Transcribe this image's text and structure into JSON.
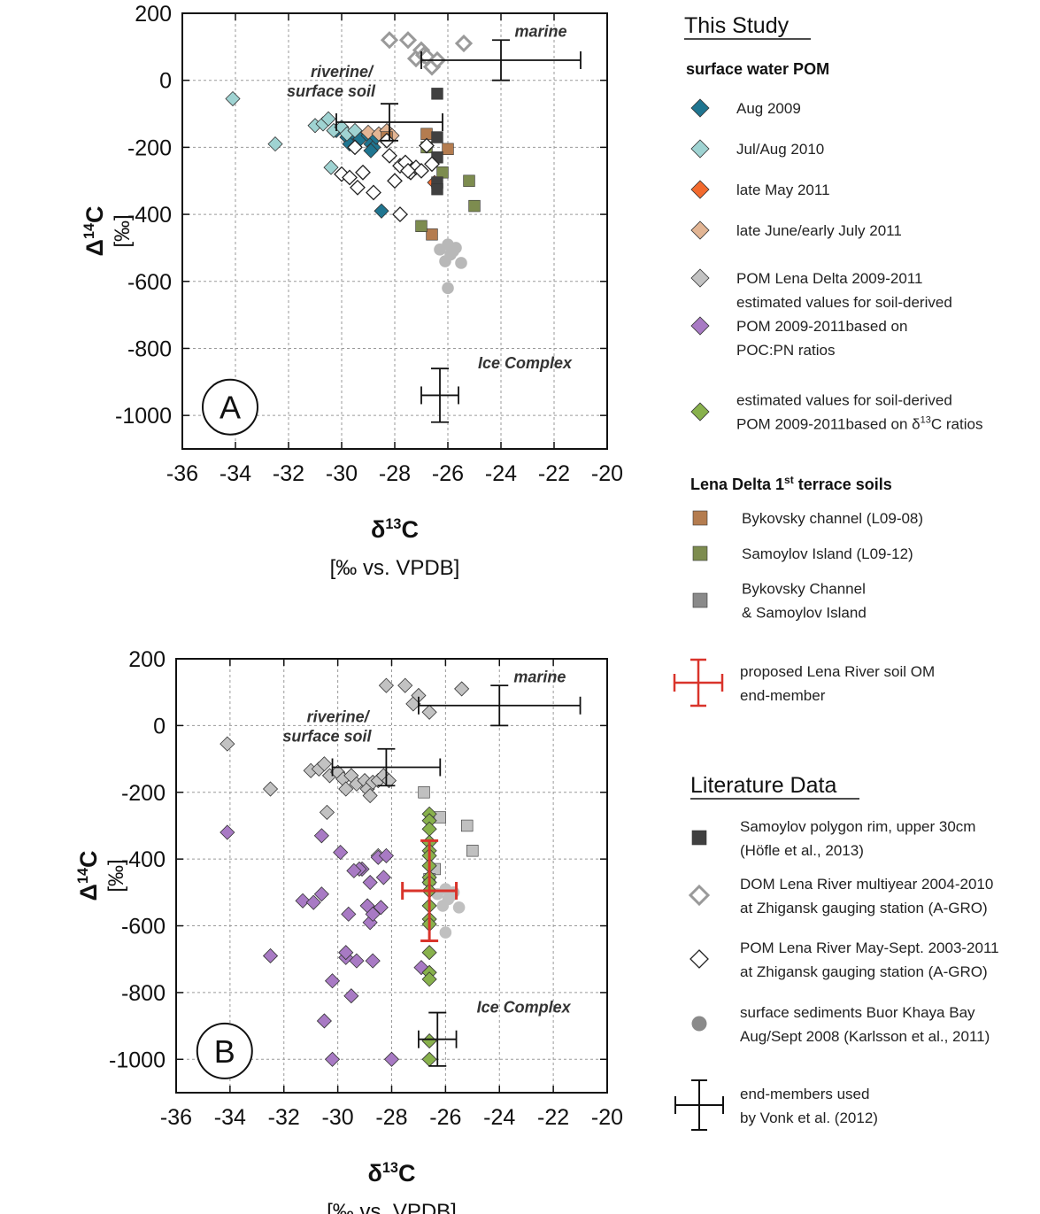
{
  "chart_data": [
    {
      "type": "scatter",
      "panel_label": "A",
      "xlabel": "δ13C",
      "xlabel_units": "[‰ vs. VPDB]",
      "ylabel": "Δ14C",
      "ylabel_units": "[‰]",
      "xlim": [
        -36,
        -20
      ],
      "ylim": [
        -1100,
        200
      ],
      "xticks": [
        "-36",
        "-34",
        "-32",
        "-30",
        "-28",
        "-26",
        "-24",
        "-22",
        "-20"
      ],
      "yticks": [
        "200",
        "0",
        "-200",
        "-400",
        "-600",
        "-800",
        "-1000"
      ],
      "grid": true,
      "annotations": [
        "marine",
        "riverine/",
        "surface soil",
        "Ice Complex"
      ],
      "end_members": [
        {
          "name": "marine",
          "x": -24,
          "y": 60,
          "xmin": -27,
          "xmax": -21,
          "ymin": 0,
          "ymax": 120
        },
        {
          "name": "riverine/surface soil",
          "x": -28.2,
          "y": -125,
          "xmin": -30.2,
          "xmax": -26.2,
          "ymin": -180,
          "ymax": -70
        },
        {
          "name": "Ice Complex",
          "x": -26.3,
          "y": -940,
          "xmin": -27,
          "xmax": -25.6,
          "ymin": -1020,
          "ymax": -860
        }
      ],
      "series": [
        {
          "name": "Aug 2009",
          "marker": "diamond",
          "color": "#1f7590",
          "x": [
            -30.2,
            -29.8,
            -29.6,
            -29.5,
            -29.3,
            -29.0,
            -28.9,
            -28.8,
            -28.7,
            -28.5,
            -28.9,
            -29.7,
            -28.5
          ],
          "y": [
            -150,
            -170,
            -160,
            -190,
            -175,
            -165,
            -190,
            -200,
            -170,
            -165,
            -210,
            -190,
            -390
          ]
        },
        {
          "name": "Jul/Aug 2010",
          "marker": "diamond",
          "color": "#9fd3d2",
          "x": [
            -34.1,
            -32.5,
            -31.0,
            -30.7,
            -30.5,
            -30.3,
            -30.0,
            -29.8,
            -29.5,
            -30.4
          ],
          "y": [
            -55,
            -190,
            -135,
            -130,
            -115,
            -150,
            -140,
            -160,
            -150,
            -260
          ]
        },
        {
          "name": "late May 2011",
          "marker": "diamond",
          "color": "#f26a2e",
          "x": [
            -26.5
          ],
          "y": [
            -305
          ]
        },
        {
          "name": "late June/early July 2011",
          "marker": "diamond",
          "color": "#e2b594",
          "x": [
            -29.0,
            -28.6,
            -28.3,
            -28.1
          ],
          "y": [
            -155,
            -160,
            -150,
            -165
          ]
        },
        {
          "name": "POM Lena Delta 2009-2011",
          "marker": "diamond",
          "color": "#c2c2c2",
          "x": [],
          "y": []
        },
        {
          "name": "Bykovsky channel (L09-08)",
          "marker": "square",
          "color": "#b47c4f",
          "x": [
            -26.8,
            -26.0,
            -26.6,
            -28.3
          ],
          "y": [
            -160,
            -205,
            -460,
            -170
          ]
        },
        {
          "name": "Samoylov Island (L09-12)",
          "marker": "square",
          "color": "#7d8c4f",
          "x": [
            -26.8,
            -26.2,
            -25.2,
            -25.0,
            -27.0
          ],
          "y": [
            -200,
            -275,
            -300,
            -375,
            -435
          ]
        },
        {
          "name": "Samoylov polygon rim, upper 30cm",
          "marker": "square",
          "color": "#404040",
          "x": [
            -26.4,
            -26.4,
            -26.4,
            -26.4,
            -26.4
          ],
          "y": [
            -40,
            -170,
            -230,
            -305,
            -325
          ]
        },
        {
          "name": "DOM Lena River multiyear 2004-2010",
          "marker": "diamond-open-thick",
          "color": "#9a9a9a",
          "x": [
            -28.2,
            -27.5,
            -27.2,
            -27.0,
            -26.9,
            -26.6,
            -25.4,
            -26.8,
            -26.4
          ],
          "y": [
            120,
            120,
            65,
            90,
            75,
            40,
            110,
            70,
            60
          ]
        },
        {
          "name": "POM Lena River May-Sept. 2003-2011",
          "marker": "diamond-open",
          "color": "#222222",
          "x": [
            -30.0,
            -29.7,
            -29.4,
            -29.2,
            -28.8,
            -28.2,
            -28.0,
            -27.8,
            -27.6,
            -27.4,
            -27.2,
            -27.0,
            -26.8,
            -26.6,
            -27.8,
            -27.5,
            -28.3,
            -29.5
          ],
          "y": [
            -280,
            -290,
            -320,
            -275,
            -335,
            -225,
            -300,
            -255,
            -245,
            -275,
            -260,
            -270,
            -195,
            -250,
            -400,
            -270,
            -180,
            -200
          ]
        },
        {
          "name": "surface sediments Buor Khaya Bay Aug/Sept 2008",
          "marker": "circle",
          "color": "#b8b8b8",
          "x": [
            -26.3,
            -26.0,
            -25.8,
            -26.1,
            -25.7,
            -25.5,
            -25.9,
            -26.0
          ],
          "y": [
            -505,
            -490,
            -510,
            -540,
            -500,
            -545,
            -520,
            -620
          ]
        }
      ]
    },
    {
      "type": "scatter",
      "panel_label": "B",
      "xlabel": "δ13C",
      "xlabel_units": "[‰ vs. VPDB]",
      "ylabel": "Δ14C",
      "ylabel_units": "[‰]",
      "xlim": [
        -36,
        -20
      ],
      "ylim": [
        -1100,
        200
      ],
      "xticks": [
        "-36",
        "-34",
        "-32",
        "-30",
        "-28",
        "-26",
        "-24",
        "-22",
        "-20"
      ],
      "yticks": [
        "200",
        "0",
        "-200",
        "-400",
        "-600",
        "-800",
        "-1000"
      ],
      "grid": true,
      "annotations": [
        "marine",
        "riverine/",
        "surface soil",
        "Ice Complex"
      ],
      "end_members": [
        {
          "name": "marine",
          "x": -24,
          "y": 60,
          "xmin": -27,
          "xmax": -21,
          "ymin": 0,
          "ymax": 120
        },
        {
          "name": "riverine/surface soil",
          "x": -28.2,
          "y": -125,
          "xmin": -30.2,
          "xmax": -26.2,
          "ymin": -180,
          "ymax": -70
        },
        {
          "name": "Ice Complex",
          "x": -26.3,
          "y": -940,
          "xmin": -27,
          "xmax": -25.6,
          "ymin": -1020,
          "ymax": -860
        },
        {
          "name": "proposed Lena River soil OM end-member",
          "x": -26.6,
          "y": -495,
          "xmin": -27.6,
          "xmax": -25.6,
          "ymin": -645,
          "ymax": -345,
          "color": "#d9342b"
        }
      ],
      "series": [
        {
          "name": "POM Lena Delta 2009-2011",
          "marker": "diamond",
          "color": "#c2c2c2",
          "x": [
            -34.1,
            -32.5,
            -31.0,
            -30.7,
            -30.5,
            -30.3,
            -30.0,
            -29.8,
            -29.5,
            -29.3,
            -29.0,
            -28.9,
            -28.7,
            -28.5,
            -28.3,
            -28.1,
            -28.5,
            -28.2,
            -27.5,
            -27.2,
            -27.0,
            -26.6,
            -25.4,
            -30.4,
            -29.7,
            -28.8
          ],
          "y": [
            -55,
            -190,
            -135,
            -130,
            -115,
            -150,
            -140,
            -160,
            -150,
            -175,
            -165,
            -190,
            -170,
            -165,
            -150,
            -165,
            -390,
            120,
            120,
            65,
            90,
            40,
            110,
            -260,
            -190,
            -210
          ]
        },
        {
          "name": "Bykovsky Channel & Samoylov Island",
          "marker": "square",
          "color": "#c0c0c0",
          "x": [
            -26.8,
            -26.2,
            -25.2,
            -25.0,
            -26.4,
            -26.6
          ],
          "y": [
            -200,
            -275,
            -300,
            -375,
            -430,
            -460
          ]
        },
        {
          "name": "surface sediments Buor Khaya Bay Aug/Sept 2008",
          "marker": "circle",
          "color": "#c0c0c0",
          "x": [
            -26.3,
            -26.0,
            -25.8,
            -26.1,
            -25.7,
            -25.5,
            -25.9,
            -26.0
          ],
          "y": [
            -505,
            -490,
            -510,
            -540,
            -500,
            -545,
            -520,
            -620
          ]
        },
        {
          "name": "estimated values for soil-derived POM 2009-2011 based on POC:PN ratios",
          "marker": "diamond",
          "color": "#a87ac4",
          "x": [
            -34.1,
            -32.5,
            -31.3,
            -30.9,
            -30.6,
            -30.6,
            -30.5,
            -30.2,
            -30.2,
            -29.9,
            -29.7,
            -29.7,
            -29.6,
            -29.5,
            -29.3,
            -29.1,
            -28.9,
            -28.8,
            -28.8,
            -28.7,
            -28.7,
            -28.5,
            -28.4,
            -28.3,
            -28.2,
            -28.0,
            -29.2,
            -29.4,
            -26.9
          ],
          "y": [
            -320,
            -690,
            -525,
            -530,
            -330,
            -505,
            -885,
            -765,
            -1000,
            -380,
            -695,
            -680,
            -565,
            -810,
            -705,
            -430,
            -540,
            -590,
            -470,
            -565,
            -705,
            -395,
            -545,
            -455,
            -390,
            -1000,
            -430,
            -435,
            -725
          ]
        },
        {
          "name": "estimated values for soil-derived POM 2009-2011 based on δ13C ratios",
          "marker": "diamond",
          "color": "#88b14c",
          "x": [
            -26.6,
            -26.6,
            -26.6,
            -26.6,
            -26.6,
            -26.6,
            -26.6,
            -26.6,
            -26.6,
            -26.6,
            -26.6,
            -26.6,
            -26.6,
            -26.6,
            -26.6,
            -26.6,
            -26.6,
            -26.6
          ],
          "y": [
            -265,
            -285,
            -310,
            -350,
            -375,
            -390,
            -420,
            -455,
            -470,
            -495,
            -540,
            -580,
            -595,
            -680,
            -740,
            -760,
            -945,
            -1000
          ]
        }
      ]
    }
  ],
  "legend": {
    "this_study": {
      "title": "This Study",
      "group1": "surface water POM",
      "items1": [
        {
          "label": "Aug 2009",
          "marker": "diamond",
          "color": "#1f7590"
        },
        {
          "label": "Jul/Aug 2010",
          "marker": "diamond",
          "color": "#9fd3d2"
        },
        {
          "label": "late May 2011",
          "marker": "diamond",
          "color": "#f26a2e"
        },
        {
          "label": "late June/early July 2011",
          "marker": "diamond",
          "color": "#e2b594"
        },
        {
          "label": "POM Lena Delta 2009-2011",
          "marker": "diamond",
          "color": "#c2c2c2"
        },
        {
          "label": "estimated values for soil-derived",
          "label2": "POM 2009-2011based on",
          "label3": "POC:PN ratios",
          "marker": "diamond",
          "color": "#a87ac4"
        },
        {
          "label": "estimated values for soil-derived",
          "label2": "POM 2009-2011based on δ13C ratios",
          "marker": "diamond",
          "color": "#88b14c"
        }
      ],
      "group2": "Lena Delta 1st terrace soils",
      "items2": [
        {
          "label": "Bykovsky channel (L09-08)",
          "marker": "square",
          "color": "#b47c4f"
        },
        {
          "label": "Samoylov Island (L09-12)",
          "marker": "square",
          "color": "#7d8c4f"
        },
        {
          "label": "Bykovsky Channel",
          "label2": "& Samoylov Island",
          "marker": "square",
          "color": "#8a8a8a"
        }
      ],
      "endmember": {
        "label": "proposed Lena River soil OM",
        "label2": "end-member",
        "color": "#d9342b"
      }
    },
    "literature": {
      "title": "Literature Data",
      "items": [
        {
          "label": "Samoylov polygon rim, upper 30cm",
          "label2": "(Höfle et al., 2013)",
          "marker": "square",
          "color": "#404040"
        },
        {
          "label": "DOM Lena River multiyear 2004-2010",
          "label2": "at Zhigansk gauging station (A-GRO)",
          "marker": "diamond-open-thick",
          "color": "#9a9a9a"
        },
        {
          "label": "POM Lena River May-Sept. 2003-2011",
          "label2": "at Zhigansk gauging station (A-GRO)",
          "marker": "diamond-open",
          "color": "#222222"
        },
        {
          "label": "surface sediments Buor Khaya Bay",
          "label2": "Aug/Sept 2008 (Karlsson et al., 2011)",
          "marker": "circle",
          "color": "#8a8a8a"
        },
        {
          "label": "end-members used",
          "label2": "by Vonk et al. (2012)",
          "marker": "errorbar",
          "color": "#111111"
        }
      ]
    }
  }
}
